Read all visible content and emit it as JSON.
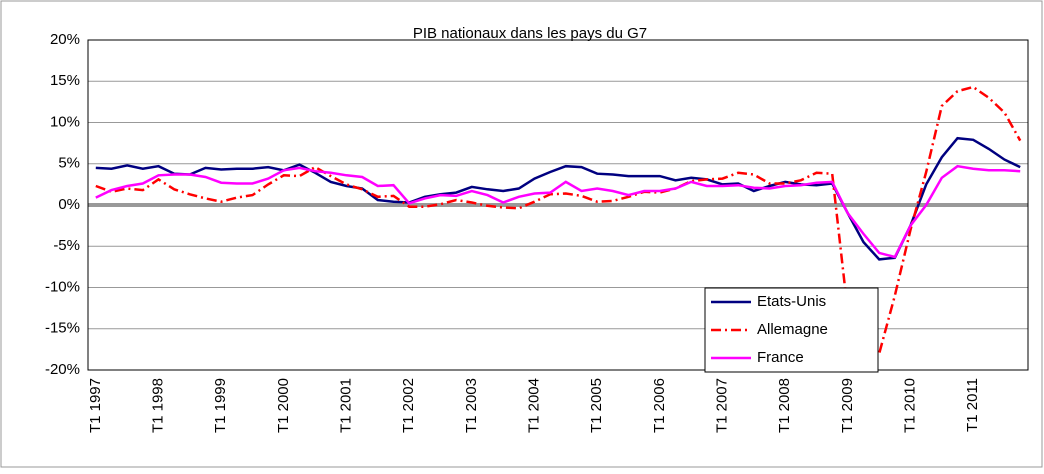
{
  "chart_data": {
    "type": "line",
    "title": "PIB nationaux dans les pays du G7",
    "categories": [
      "T1 1997",
      null,
      null,
      null,
      "T1 1998",
      null,
      null,
      null,
      "T1 1999",
      null,
      null,
      null,
      "T1 2000",
      null,
      null,
      null,
      "T1 2001",
      null,
      null,
      null,
      "T1 2002",
      null,
      null,
      null,
      "T1 2003",
      null,
      null,
      null,
      "T1 2004",
      null,
      null,
      null,
      "T1 2005",
      null,
      null,
      null,
      "T1 2006",
      null,
      null,
      null,
      "T1 2007",
      null,
      null,
      null,
      "T1 2008",
      null,
      null,
      null,
      "T1 2009",
      null,
      null,
      null,
      "T1 2010",
      null,
      null,
      null,
      "T1 2011",
      null,
      null,
      null
    ],
    "series": [
      {
        "name": "Etats-Unis",
        "color": "#000080",
        "line_style": "solid",
        "values": [
          4.5,
          4.4,
          4.8,
          4.4,
          4.7,
          3.8,
          3.7,
          4.5,
          4.3,
          4.4,
          4.4,
          4.6,
          4.2,
          4.9,
          3.9,
          2.8,
          2.3,
          2.0,
          0.6,
          0.4,
          0.3,
          1.0,
          1.3,
          1.5,
          2.2,
          1.9,
          1.7,
          2.0,
          3.2,
          4.0,
          4.7,
          4.6,
          3.8,
          3.7,
          3.5,
          3.5,
          3.5,
          3.0,
          3.3,
          3.1,
          2.5,
          2.6,
          1.7,
          2.3,
          2.8,
          2.5,
          2.4,
          2.6,
          -1.0,
          -4.5,
          -6.6,
          -6.4,
          -2.5,
          2.5,
          5.8,
          8.1,
          7.9,
          6.8,
          5.5,
          4.6
        ]
      },
      {
        "name": "Allemagne",
        "color": "#ff0000",
        "line_style": "dashdot",
        "values": [
          2.3,
          1.6,
          2.0,
          1.8,
          3.1,
          1.9,
          1.3,
          0.8,
          0.4,
          0.9,
          1.2,
          2.5,
          3.6,
          3.5,
          4.6,
          3.5,
          2.5,
          1.9,
          1.0,
          1.1,
          -0.2,
          -0.2,
          0.1,
          0.6,
          0.3,
          -0.1,
          -0.3,
          -0.4,
          0.4,
          1.3,
          1.4,
          1.1,
          0.4,
          0.5,
          1.0,
          1.6,
          1.5,
          2.0,
          2.9,
          3.1,
          3.2,
          3.9,
          3.7,
          2.6,
          2.6,
          3.0,
          3.9,
          3.8,
          -13,
          -18,
          -18,
          -11,
          -3,
          4,
          12,
          13.8,
          14.3,
          13,
          11.2,
          7.8
        ]
      },
      {
        "name": "France",
        "color": "#ff00ff",
        "line_style": "solid",
        "values": [
          0.9,
          1.8,
          2.3,
          2.6,
          3.6,
          3.7,
          3.7,
          3.4,
          2.7,
          2.6,
          2.6,
          3.2,
          4.2,
          4.5,
          4.1,
          3.9,
          3.6,
          3.4,
          2.3,
          2.4,
          0.2,
          0.8,
          1.2,
          1.1,
          1.7,
          1.2,
          0.3,
          1.0,
          1.4,
          1.5,
          2.8,
          1.7,
          2.0,
          1.7,
          1.2,
          1.7,
          1.7,
          2.0,
          2.8,
          2.3,
          2.3,
          2.4,
          2.1,
          2.0,
          2.3,
          2.4,
          2.7,
          2.8,
          -1.0,
          -3.5,
          -5.8,
          -6.3,
          -2.5,
          0,
          3.3,
          4.7,
          4.4,
          4.2,
          4.2,
          4.1
        ]
      }
    ],
    "ylim": [
      -20,
      20
    ],
    "yticks": [
      {
        "value": -20,
        "label": "-20%"
      },
      {
        "value": -15,
        "label": "-15%"
      },
      {
        "value": -10,
        "label": "-10%"
      },
      {
        "value": -5,
        "label": "-5%"
      },
      {
        "value": 0,
        "label": "0%"
      },
      {
        "value": 5,
        "label": "5%"
      },
      {
        "value": 10,
        "label": "10%"
      },
      {
        "value": 15,
        "label": "15%"
      },
      {
        "value": 20,
        "label": "20%"
      }
    ],
    "grid": true,
    "legend": "lower right"
  }
}
